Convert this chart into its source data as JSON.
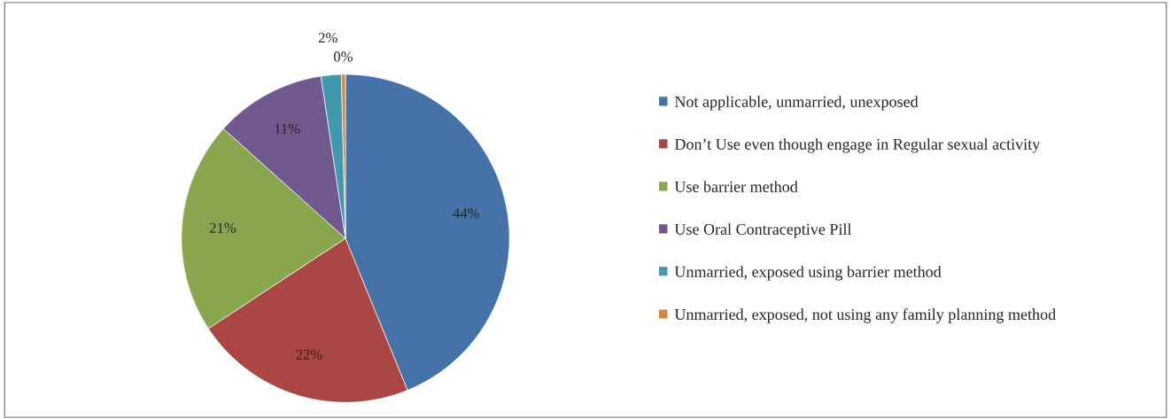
{
  "chart_data": {
    "type": "pie",
    "categories": [
      "Not applicable, unmarried, unexposed",
      "Don’t Use even though engage in Regular sexual activity",
      "Use barrier method",
      "Use Oral Contraceptive Pill",
      "Unmarried, exposed using barrier method",
      "Unmarried, exposed, not using any family planning method"
    ],
    "values": [
      44,
      22,
      21,
      11,
      2,
      0.4
    ],
    "value_labels": [
      "44%",
      "22%",
      "21%",
      "11%",
      "2%",
      "0%"
    ],
    "colors": [
      "#4572a7",
      "#aa4643",
      "#89a54e",
      "#71588f",
      "#4198af",
      "#db843d"
    ],
    "legend": "right"
  }
}
